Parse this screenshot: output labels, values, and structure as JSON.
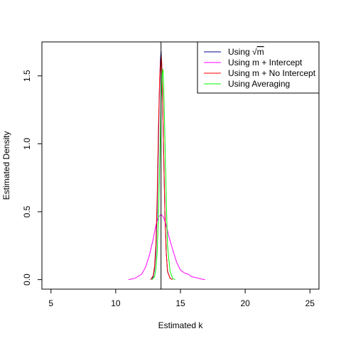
{
  "chart_data": {
    "type": "line",
    "title": "",
    "xlabel": "Estimated k",
    "ylabel": "Estimated Density",
    "xlim": [
      4.3,
      25.7
    ],
    "ylim": [
      -0.07,
      1.75
    ],
    "x_ticks": [
      5,
      10,
      15,
      20,
      25
    ],
    "y_ticks": [
      0.0,
      0.5,
      1.0,
      1.5
    ],
    "x_tick_labels": [
      "5",
      "10",
      "15",
      "20",
      "25"
    ],
    "y_tick_labels": [
      "0.0",
      "0.5",
      "1.0",
      "1.5"
    ],
    "grid": false,
    "legend_position": "top-right",
    "reference_line": {
      "orientation": "vertical",
      "x": 13.5,
      "color": "#000000"
    },
    "legend": {
      "entries": [
        {
          "prefix": "Using ",
          "radical": "√",
          "radicand": "m",
          "suffix": "",
          "color": "#00008B"
        },
        {
          "prefix": "Using m + Intercept",
          "radical": "",
          "radicand": "",
          "suffix": "",
          "color": "#FF00FF"
        },
        {
          "prefix": "Using m + No Intercept",
          "radical": "",
          "radicand": "",
          "suffix": "",
          "color": "#FF0000"
        },
        {
          "prefix": "Using Averaging",
          "radical": "",
          "radicand": "",
          "suffix": "",
          "color": "#00FF00"
        }
      ]
    },
    "series": [
      {
        "name": "Using √m",
        "color": "#00008B",
        "x": [
          12.7,
          12.9,
          13.0,
          13.1,
          13.2,
          13.3,
          13.4,
          13.45,
          13.5,
          13.55,
          13.6,
          13.7,
          13.8,
          13.9,
          14.0,
          14.2,
          14.4
        ],
        "y": [
          0.0,
          0.02,
          0.08,
          0.2,
          0.5,
          1.0,
          1.48,
          1.62,
          1.68,
          1.6,
          1.42,
          0.95,
          0.5,
          0.2,
          0.06,
          0.01,
          0.0
        ]
      },
      {
        "name": "Using m + Intercept",
        "color": "#FF00FF",
        "x": [
          11.0,
          11.5,
          12.0,
          12.3,
          12.6,
          12.9,
          13.1,
          13.3,
          13.5,
          13.7,
          13.9,
          14.1,
          14.4,
          14.7,
          15.0,
          15.3,
          15.6,
          15.9,
          16.2,
          16.6,
          16.9
        ],
        "y": [
          0.0,
          0.01,
          0.04,
          0.09,
          0.18,
          0.3,
          0.4,
          0.46,
          0.48,
          0.46,
          0.4,
          0.32,
          0.22,
          0.13,
          0.07,
          0.05,
          0.04,
          0.02,
          0.015,
          0.005,
          0.0
        ]
      },
      {
        "name": "Using m + No Intercept",
        "color": "#FF0000",
        "x": [
          12.7,
          12.9,
          13.0,
          13.1,
          13.2,
          13.3,
          13.4,
          13.5,
          13.55,
          13.6,
          13.7,
          13.8,
          13.9,
          14.0,
          14.2,
          14.4
        ],
        "y": [
          0.0,
          0.03,
          0.1,
          0.25,
          0.6,
          1.1,
          1.5,
          1.65,
          1.6,
          1.45,
          0.95,
          0.5,
          0.2,
          0.06,
          0.01,
          0.0
        ]
      },
      {
        "name": "Using Averaging",
        "color": "#00FF00",
        "x": [
          12.8,
          13.0,
          13.1,
          13.2,
          13.3,
          13.4,
          13.5,
          13.6,
          13.65,
          13.7,
          13.8,
          13.9,
          14.0,
          14.2,
          14.4,
          14.6
        ],
        "y": [
          0.0,
          0.02,
          0.08,
          0.2,
          0.45,
          0.85,
          1.3,
          1.52,
          1.55,
          1.45,
          1.05,
          0.6,
          0.25,
          0.06,
          0.01,
          0.0
        ]
      }
    ]
  }
}
